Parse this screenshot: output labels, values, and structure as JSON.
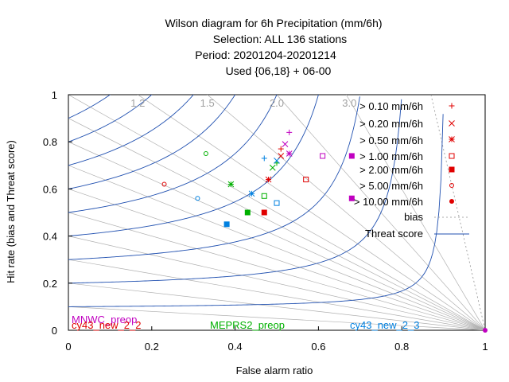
{
  "chart_data": {
    "type": "scatter",
    "title_lines": [
      "Wilson diagram  for 6h Precipitation (mm/6h)",
      "Selection: ALL    136 stations",
      "Period: 20201204-20201214",
      "Used {06,18} + 06-00"
    ],
    "xlabel": "False alarm ratio",
    "ylabel": "Hit rate (bias and Threat score)",
    "xlim": [
      0,
      1
    ],
    "ylim": [
      0,
      1
    ],
    "x_ticks": [
      "0",
      "0.2",
      "0.4",
      "0.6",
      "0.8",
      "1"
    ],
    "y_ticks": [
      "0",
      "0.2",
      "0.4",
      "0.6",
      "0.8",
      "1"
    ],
    "bias_labels": [
      "1.2",
      "1.5",
      "2.0",
      "3.0"
    ],
    "bias_values": [
      1.2,
      1.5,
      2.0,
      3.0
    ],
    "bias_lines": [
      0.1,
      0.2,
      0.3,
      0.4,
      0.5,
      0.6,
      0.7,
      0.8,
      0.9,
      1.0,
      1.2,
      1.5,
      2.0,
      3.0
    ],
    "threat_score_curves": [
      0.1,
      0.2,
      0.3,
      0.4,
      0.5,
      0.6,
      0.7,
      0.8,
      0.9
    ],
    "legend": {
      "thresholds": [
        {
          "label": "> 0.10 mm/6h",
          "marker": "plus"
        },
        {
          "label": "> 0.20 mm/6h",
          "marker": "cross"
        },
        {
          "label": "> 0.50 mm/6h",
          "marker": "star"
        },
        {
          "label": "> 1.00 mm/6h",
          "marker": "open-square"
        },
        {
          "label": "> 2.00 mm/6h",
          "marker": "filled-square"
        },
        {
          "label": "> 5.00 mm/6h",
          "marker": "open-circle"
        },
        {
          "label": "> 10.00 mm/6h",
          "marker": "filled-circle"
        }
      ],
      "bias": "bias",
      "threat": "Threat score"
    },
    "series": [
      {
        "name": "MNWC_preop",
        "color": "#c000c0",
        "points": [
          [
            0.53,
            0.84
          ],
          [
            0.52,
            0.79
          ],
          [
            0.53,
            0.75
          ],
          [
            0.61,
            0.74
          ],
          [
            0.68,
            0.74
          ],
          [
            0.68,
            0.56
          ]
        ]
      },
      {
        "name": "cy43_new_2_2",
        "color": "#e00000",
        "points": [
          [
            0.51,
            0.77
          ],
          [
            0.51,
            0.74
          ],
          [
            0.48,
            0.64
          ],
          [
            0.57,
            0.64
          ],
          [
            0.47,
            0.5
          ],
          [
            0.23,
            0.62
          ]
        ]
      },
      {
        "name": "MEPRS2_preop",
        "color": "#00b000",
        "points": [
          [
            0.5,
            0.71
          ],
          [
            0.49,
            0.69
          ],
          [
            0.39,
            0.62
          ],
          [
            0.47,
            0.57
          ],
          [
            0.43,
            0.5
          ],
          [
            0.33,
            0.75
          ]
        ]
      },
      {
        "name": "cy43_new_2_3",
        "color": "#0080e0",
        "points": [
          [
            0.47,
            0.73
          ],
          [
            0.5,
            0.72
          ],
          [
            0.44,
            0.58
          ],
          [
            0.5,
            0.54
          ],
          [
            0.38,
            0.45
          ],
          [
            0.31,
            0.56
          ]
        ]
      }
    ],
    "markers_order": [
      "plus",
      "cross",
      "star",
      "open-square",
      "filled-square",
      "open-circle"
    ],
    "colors": {
      "threat_curve": "#2050b0",
      "bias_line": "#b0b0b0",
      "bias_diag": "#909090"
    }
  }
}
